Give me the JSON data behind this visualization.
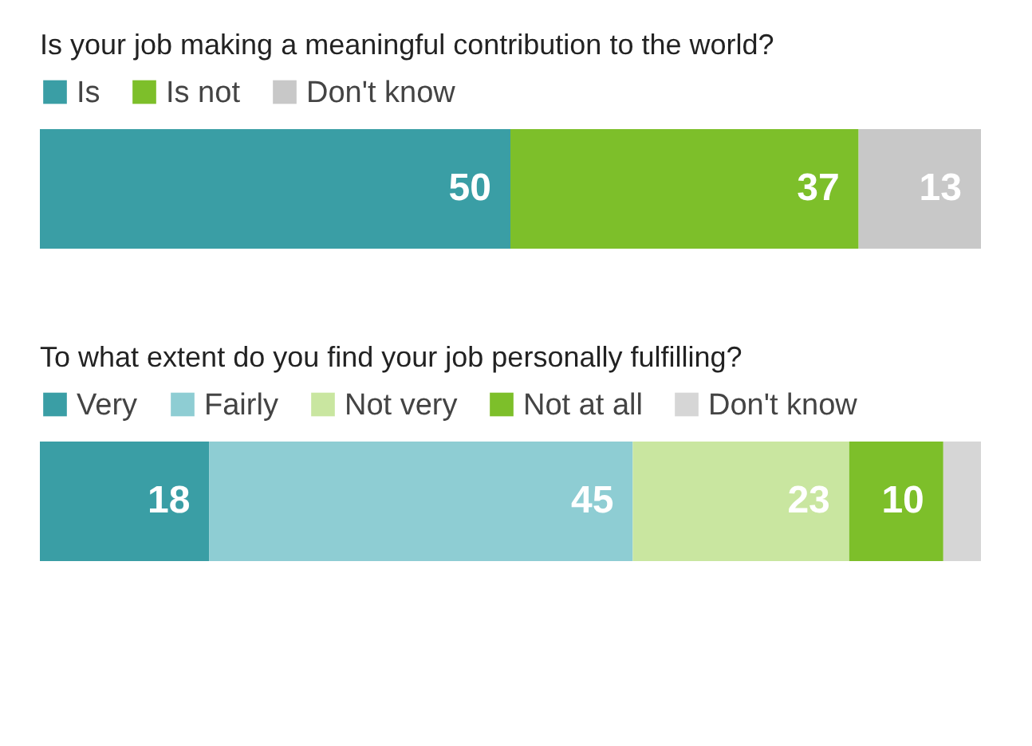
{
  "chart_data": [
    {
      "type": "bar",
      "orientation": "horizontal",
      "stacked": true,
      "title": "Is your job making a meaningful contribution to the world?",
      "categories": [
        null
      ],
      "xlim": [
        0,
        100
      ],
      "legend": "top",
      "data_labels": true,
      "series": [
        {
          "name": "Is",
          "color": "#3a9ea5",
          "values": [
            50
          ]
        },
        {
          "name": "Is not",
          "color": "#7dbf2a",
          "values": [
            37
          ]
        },
        {
          "name": "Don't know",
          "color": "#c8c8c8",
          "values": [
            13
          ]
        }
      ]
    },
    {
      "type": "bar",
      "orientation": "horizontal",
      "stacked": true,
      "title": "To what extent do you find your job personally fulfilling?",
      "categories": [
        null
      ],
      "xlim": [
        0,
        100
      ],
      "legend": "top",
      "series": [
        {
          "name": "Very",
          "color": "#3a9ea5",
          "values": [
            18
          ],
          "value_labels": [
            "18"
          ]
        },
        {
          "name": "Fairly",
          "color": "#8ecdd3",
          "values": [
            45
          ],
          "value_labels": [
            "45"
          ]
        },
        {
          "name": "Not very",
          "color": "#c9e6a0",
          "values": [
            23
          ],
          "value_labels": [
            "23"
          ]
        },
        {
          "name": "Not at all",
          "color": "#7dbf2a",
          "values": [
            10
          ],
          "value_labels": [
            "10"
          ]
        },
        {
          "name": "Don't know",
          "color": "#d6d6d6",
          "values": [
            4
          ],
          "value_labels": [
            null
          ]
        }
      ]
    }
  ]
}
